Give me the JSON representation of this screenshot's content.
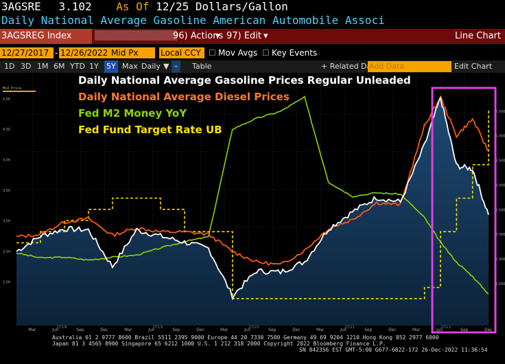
{
  "header": {
    "ticker": "3AGSRE",
    "last_value": "3.102",
    "as_of_label": "As Of",
    "as_of_date": "12/25",
    "units": "Dollars/Gallon",
    "description": "Daily National Average Gasoline  American Automobile Associ"
  },
  "toolbar": {
    "index_name": "3AGSREG Index",
    "actions_label": "96) Actions",
    "edit_label": "97) Edit",
    "view_label": "Line Chart"
  },
  "controls": {
    "start_date": "12/27/2017",
    "end_date": "12/26/2022",
    "price_field": "Mid Px",
    "currency": "Local CCY",
    "mov_avgs_label": "Mov Avgs",
    "key_events_label": "Key Events"
  },
  "ranges": {
    "items": [
      "1D",
      "3D",
      "1M",
      "6M",
      "YTD",
      "1Y",
      "5Y",
      "Max",
      "Daily"
    ],
    "selected": "5Y",
    "table_label": "Table",
    "related_label": "+ Related Dat",
    "add_data_placeholder": "Add Data",
    "edit_chart_label": "Edit Chart"
  },
  "chart_data": {
    "type": "line",
    "title": "",
    "x": [
      "2018-01",
      "2018-04",
      "2018-07",
      "2018-10",
      "2019-01",
      "2019-04",
      "2019-07",
      "2019-10",
      "2020-01",
      "2020-04",
      "2020-07",
      "2020-10",
      "2021-01",
      "2021-04",
      "2021-07",
      "2021-10",
      "2022-01",
      "2022-04",
      "2022-06",
      "2022-08",
      "2022-10",
      "2022-12"
    ],
    "series": [
      {
        "name": "Daily National Average Gasoline Prices Regular Unleaded",
        "color": "#ffffff",
        "values": [
          2.5,
          2.75,
          2.87,
          2.85,
          2.25,
          2.85,
          2.75,
          2.65,
          2.55,
          1.77,
          2.18,
          2.16,
          2.33,
          2.87,
          3.15,
          3.38,
          3.31,
          4.24,
          5.02,
          3.9,
          3.85,
          3.1
        ]
      },
      {
        "name": "Daily National Average Diesel Prices",
        "color": "#ff5a0a",
        "values": [
          2.95,
          3.0,
          3.25,
          3.32,
          2.98,
          3.13,
          3.05,
          3.05,
          3.0,
          2.65,
          2.44,
          2.38,
          2.67,
          3.12,
          3.3,
          3.64,
          3.6,
          5.2,
          5.78,
          5.0,
          5.34,
          4.68
        ]
      },
      {
        "name": "Fed M2 Money YoY",
        "color": "#8bd600",
        "values": [
          4.5,
          3.8,
          3.9,
          3.5,
          3.9,
          4.2,
          5.2,
          6.1,
          6.8,
          22.0,
          23.5,
          24.5,
          26.5,
          14.5,
          12.5,
          13.0,
          12.8,
          9.5,
          6.0,
          3.2,
          1.2,
          -1.3
        ]
      },
      {
        "name": "Fed Fund Target Rate UB",
        "color": "#ffe000",
        "values": [
          1.5,
          1.75,
          2.0,
          2.25,
          2.5,
          2.5,
          2.25,
          1.75,
          1.75,
          0.25,
          0.25,
          0.25,
          0.25,
          0.25,
          0.25,
          0.25,
          0.25,
          0.5,
          1.75,
          2.5,
          3.25,
          4.5
        ]
      }
    ],
    "legend": [
      {
        "label": "Daily National Average Gasoline Prices Regular Unleaded",
        "color": "#ffffff"
      },
      {
        "label": "Daily National Average Diesel Prices",
        "color": "#ff7a2a"
      },
      {
        "label": "Fed M2 Money YoY",
        "color": "#8bd600"
      },
      {
        "label": "Fed Fund Target Rate UB",
        "color": "#ffe000"
      }
    ],
    "highlight_color": "#e040e0",
    "x_tick_labels": [
      "Mar",
      "Jun",
      "Sep",
      "Dec",
      "Mar",
      "Jun",
      "Sep",
      "Dec",
      "Mar",
      "Jun",
      "Sep",
      "Dec",
      "Mar",
      "Jun",
      "Sep",
      "Dec",
      "Mar",
      "Jun",
      "Sep",
      "Dec"
    ],
    "year_labels": [
      "2018",
      "2019",
      "2020",
      "2021",
      "2022"
    ]
  },
  "footer": {
    "line1": "Australia 61 2 9777 8600 Brazil 5511 2395 9000 Europe 44 20 7330 7500 Germany 49 69 9204 1210 Hong Kong 852 2977 6000",
    "line2": "Japan 81 3 4565 8900       Singapore 65 6212 1000       U.S. 1 212 318 2000           Copyright 2022 Bloomberg Finance L.P.",
    "line3": "SN 842356 EST  GMT-5:00 G677-6822-172 26-Dec-2022 11:36:54"
  }
}
